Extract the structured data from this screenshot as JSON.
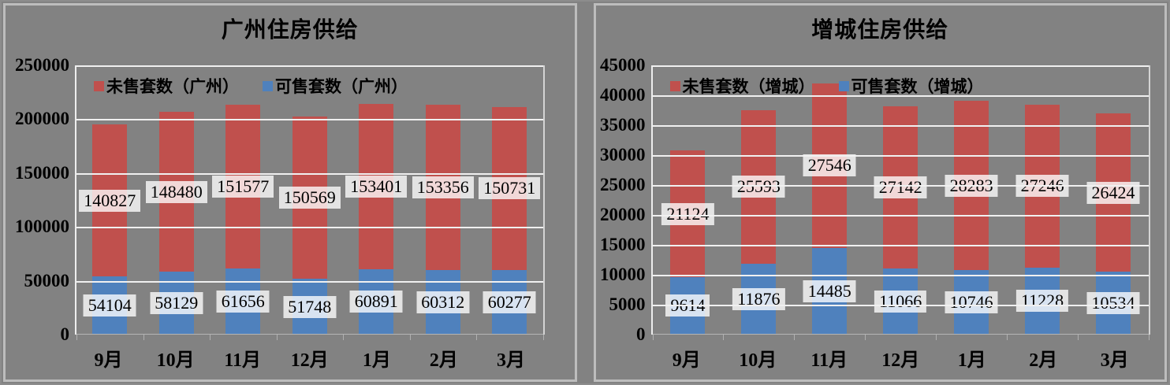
{
  "page": {
    "background_color": "#828282",
    "panel_border_color": "#bdbdbd",
    "gridline_color": "#f0f0f0",
    "label_box_color": "rgba(255,255,255,0.78)"
  },
  "chart_data": [
    {
      "type": "bar",
      "stacked": true,
      "title": "广州住房供给",
      "categories": [
        "9月",
        "10月",
        "11月",
        "12月",
        "1月",
        "2月",
        "3月"
      ],
      "series": [
        {
          "name": "可售套数（广州）",
          "color": "#4f81bd",
          "values": [
            54104,
            58129,
            61656,
            51748,
            60891,
            60312,
            60277
          ]
        },
        {
          "name": "未售套数（广州）",
          "color": "#c0504d",
          "values": [
            140827,
            148480,
            151577,
            150569,
            153401,
            153356,
            150731
          ]
        }
      ],
      "legend_series_order": [
        1,
        0
      ],
      "legend_position": "top-inside",
      "data_labels": "center",
      "grid": true,
      "ylim": [
        0,
        250000
      ],
      "ytick": 50000,
      "xlabel": "",
      "ylabel": ""
    },
    {
      "type": "bar",
      "stacked": true,
      "title": "增城住房供给",
      "categories": [
        "9月",
        "10月",
        "11月",
        "12月",
        "1月",
        "2月",
        "3月"
      ],
      "series": [
        {
          "name": "可售套数（增城）",
          "color": "#4f81bd",
          "values": [
            9614,
            11876,
            14485,
            11066,
            10746,
            11228,
            10534
          ]
        },
        {
          "name": "未售套数（增城）",
          "color": "#c0504d",
          "values": [
            21124,
            25593,
            27546,
            27142,
            28283,
            27246,
            26424
          ]
        }
      ],
      "legend_series_order": [
        1,
        0
      ],
      "legend_position": "top-inside",
      "data_labels": "center",
      "grid": true,
      "ylim": [
        0,
        45000
      ],
      "ytick": 5000,
      "xlabel": "",
      "ylabel": ""
    }
  ]
}
